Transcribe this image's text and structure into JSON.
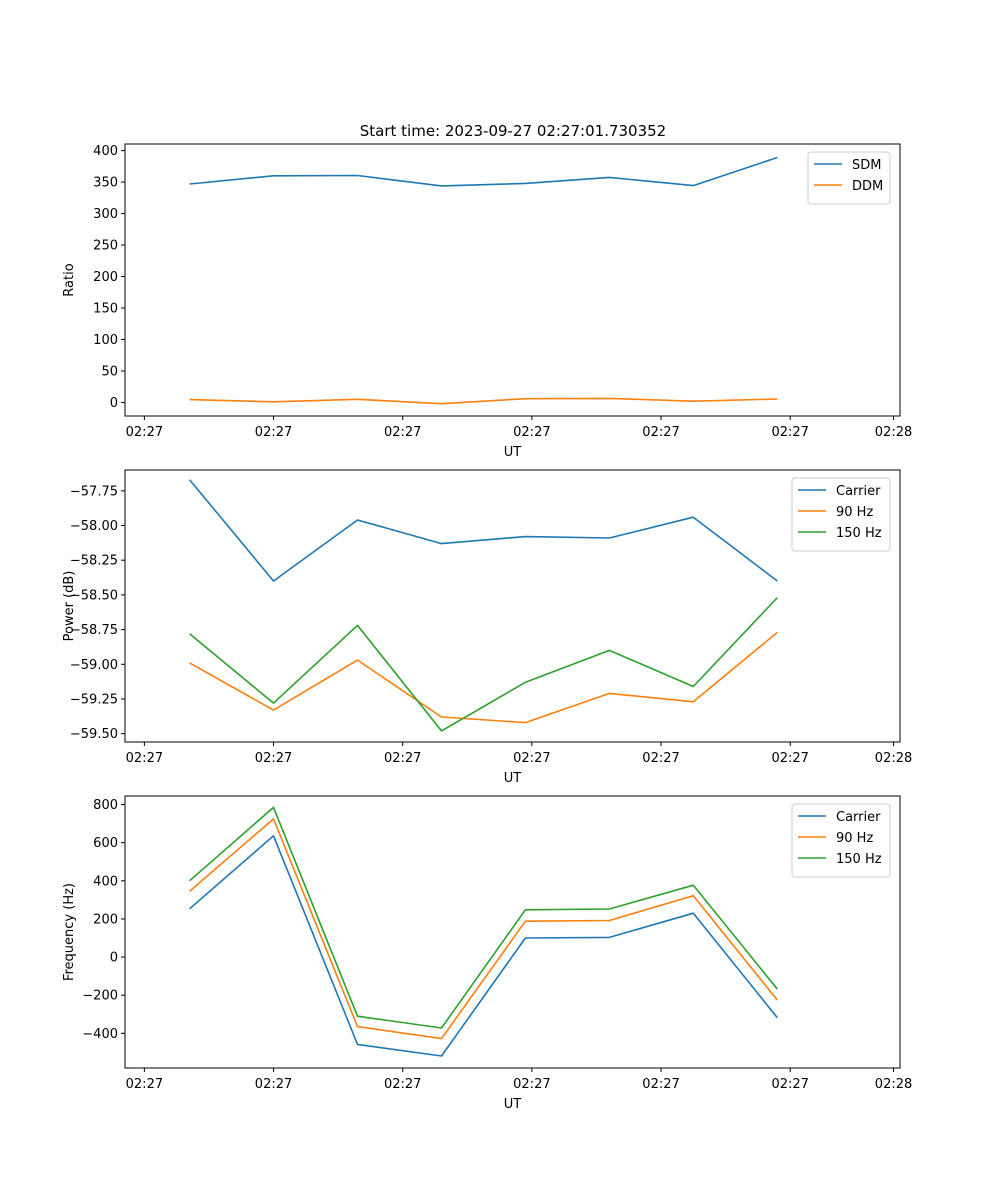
{
  "figure_title": "Start time: 2023-09-27 02:27:01.730352",
  "chart_data": [
    {
      "type": "line",
      "title": "Start time: 2023-09-27 02:27:01.730352",
      "xlabel": "UT",
      "ylabel": "Ratio",
      "x_tick_labels": [
        "02:27",
        "02:27",
        "02:27",
        "02:27",
        "02:27",
        "02:27",
        "02:28"
      ],
      "ylim": [
        -21.5,
        410.5
      ],
      "yticks": [
        0,
        50,
        100,
        150,
        200,
        250,
        300,
        350,
        400
      ],
      "ytick_labels": [
        "0",
        "50",
        "100",
        "150",
        "200",
        "250",
        "300",
        "350",
        "400"
      ],
      "x_points": [
        0.5,
        1.15,
        1.8,
        2.45,
        3.1,
        3.75,
        4.4,
        5.05
      ],
      "xlim": [
        0,
        6
      ],
      "legend_position": "top-right",
      "series": [
        {
          "name": "SDM",
          "color": "#1f77b4",
          "values": [
            347,
            360,
            360.5,
            344,
            348,
            357.5,
            344.5,
            389
          ]
        },
        {
          "name": "DDM",
          "color": "#ff7f0e",
          "values": [
            4.5,
            1,
            5,
            -2,
            6,
            6.5,
            2,
            5.5
          ]
        }
      ]
    },
    {
      "type": "line",
      "title": "",
      "xlabel": "UT",
      "ylabel": "Power (dB)",
      "x_tick_labels": [
        "02:27",
        "02:27",
        "02:27",
        "02:27",
        "02:27",
        "02:27",
        "02:28"
      ],
      "ylim": [
        -59.56,
        -57.6
      ],
      "yticks": [
        -59.5,
        -59.25,
        -59.0,
        -58.75,
        -58.5,
        -58.25,
        -58.0,
        -57.75
      ],
      "ytick_labels": [
        "−59.50",
        "−59.25",
        "−59.00",
        "−58.75",
        "−58.50",
        "−58.25",
        "−58.00",
        "−57.75"
      ],
      "x_points": [
        0.5,
        1.15,
        1.8,
        2.45,
        3.1,
        3.75,
        4.4,
        5.05
      ],
      "xlim": [
        0,
        6
      ],
      "legend_position": "top-right",
      "series": [
        {
          "name": "Carrier",
          "color": "#1f77b4",
          "values": [
            -57.67,
            -58.4,
            -57.96,
            -58.13,
            -58.08,
            -58.09,
            -57.94,
            -58.4
          ]
        },
        {
          "name": "90 Hz",
          "color": "#ff7f0e",
          "values": [
            -58.99,
            -59.33,
            -58.97,
            -59.38,
            -59.42,
            -59.21,
            -59.27,
            -58.77
          ]
        },
        {
          "name": "150 Hz",
          "color": "#2ca02c",
          "values": [
            -58.78,
            -59.28,
            -58.72,
            -59.48,
            -59.13,
            -58.9,
            -59.16,
            -58.52
          ]
        }
      ]
    },
    {
      "type": "line",
      "title": "",
      "xlabel": "UT",
      "ylabel": "Frequency (Hz)",
      "x_tick_labels": [
        "02:27",
        "02:27",
        "02:27",
        "02:27",
        "02:27",
        "02:27",
        "02:28"
      ],
      "ylim": [
        -582,
        845
      ],
      "yticks": [
        -400,
        -200,
        0,
        200,
        400,
        600,
        800
      ],
      "ytick_labels": [
        "−400",
        "−200",
        "0",
        "200",
        "400",
        "600",
        "800"
      ],
      "x_points": [
        0.5,
        1.15,
        1.8,
        2.45,
        3.1,
        3.75,
        4.4,
        5.05
      ],
      "xlim": [
        0,
        6
      ],
      "legend_position": "top-right",
      "series": [
        {
          "name": "Carrier",
          "color": "#1f77b4",
          "values": [
            253,
            636,
            -458,
            -519,
            100,
            103,
            230,
            -318
          ]
        },
        {
          "name": "90 Hz",
          "color": "#ff7f0e",
          "values": [
            345,
            725,
            -365,
            -428,
            188,
            192,
            322,
            -226
          ]
        },
        {
          "name": "150 Hz",
          "color": "#2ca02c",
          "values": [
            400,
            785,
            -310,
            -372,
            248,
            252,
            377,
            -168
          ]
        }
      ]
    }
  ]
}
